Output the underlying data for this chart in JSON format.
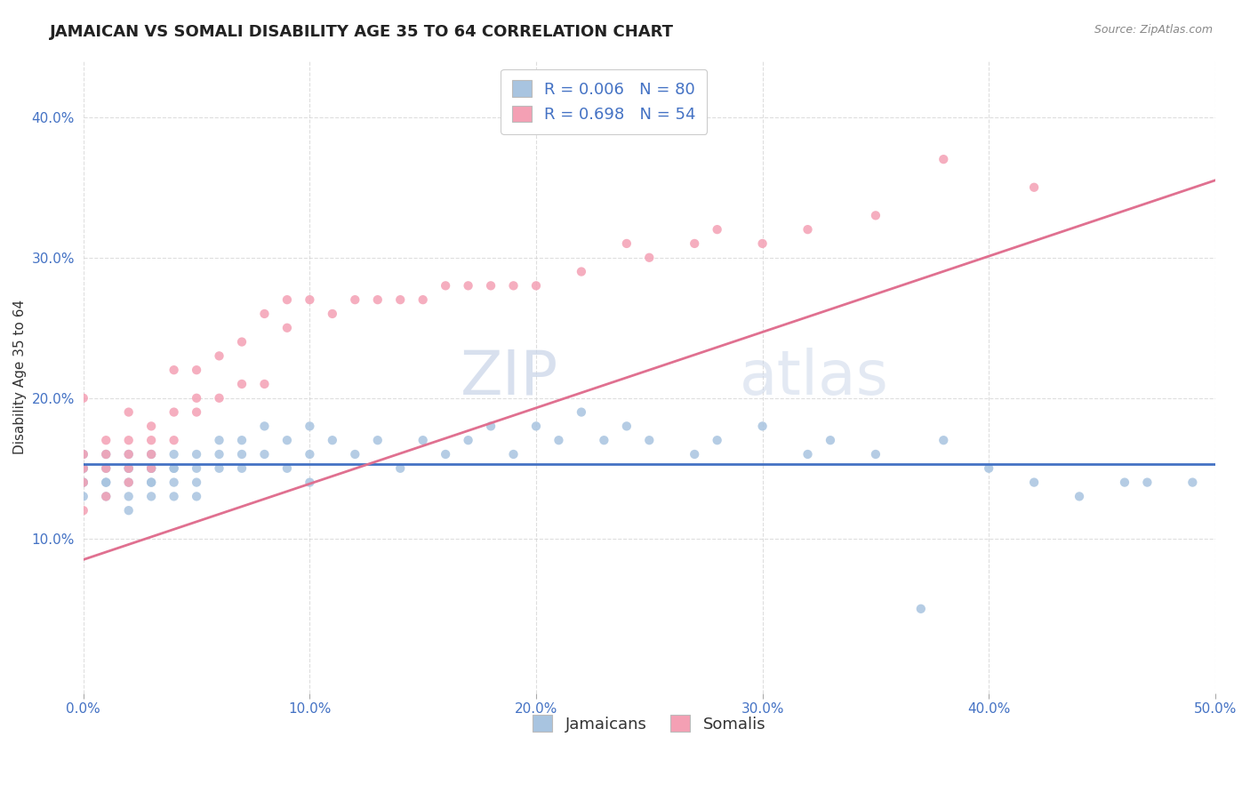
{
  "title": "JAMAICAN VS SOMALI DISABILITY AGE 35 TO 64 CORRELATION CHART",
  "source": "Source: ZipAtlas.com",
  "ylabel": "Disability Age 35 to 64",
  "xlim": [
    0.0,
    0.5
  ],
  "ylim": [
    -0.01,
    0.44
  ],
  "xtick_labels": [
    "0.0%",
    "10.0%",
    "20.0%",
    "30.0%",
    "40.0%",
    "50.0%"
  ],
  "xtick_vals": [
    0.0,
    0.1,
    0.2,
    0.3,
    0.4,
    0.5
  ],
  "ytick_labels": [
    "10.0%",
    "20.0%",
    "30.0%",
    "40.0%"
  ],
  "ytick_vals": [
    0.1,
    0.2,
    0.3,
    0.4
  ],
  "watermark": "ZIPatlas",
  "jamaican_color": "#a8c4e0",
  "somali_color": "#f4a0b4",
  "jamaican_line_color": "#4472c4",
  "somali_line_color": "#e07090",
  "r_value_color": "#4472c4",
  "jamaicans_x": [
    0.0,
    0.0,
    0.0,
    0.0,
    0.0,
    0.0,
    0.01,
    0.01,
    0.01,
    0.01,
    0.01,
    0.02,
    0.02,
    0.02,
    0.02,
    0.02,
    0.02,
    0.03,
    0.03,
    0.03,
    0.03,
    0.03,
    0.03,
    0.04,
    0.04,
    0.04,
    0.04,
    0.04,
    0.05,
    0.05,
    0.05,
    0.05,
    0.06,
    0.06,
    0.06,
    0.07,
    0.07,
    0.07,
    0.08,
    0.08,
    0.09,
    0.09,
    0.1,
    0.1,
    0.1,
    0.11,
    0.12,
    0.13,
    0.14,
    0.15,
    0.16,
    0.17,
    0.18,
    0.19,
    0.2,
    0.21,
    0.22,
    0.23,
    0.24,
    0.25,
    0.27,
    0.28,
    0.3,
    0.32,
    0.33,
    0.35,
    0.37,
    0.38,
    0.4,
    0.42,
    0.44,
    0.46,
    0.47,
    0.49
  ],
  "jamaicans_y": [
    0.14,
    0.15,
    0.16,
    0.13,
    0.14,
    0.15,
    0.13,
    0.14,
    0.15,
    0.16,
    0.14,
    0.13,
    0.14,
    0.15,
    0.12,
    0.16,
    0.15,
    0.14,
    0.13,
    0.15,
    0.14,
    0.16,
    0.15,
    0.14,
    0.15,
    0.13,
    0.16,
    0.15,
    0.15,
    0.14,
    0.16,
    0.13,
    0.17,
    0.15,
    0.16,
    0.16,
    0.17,
    0.15,
    0.18,
    0.16,
    0.17,
    0.15,
    0.16,
    0.18,
    0.14,
    0.17,
    0.16,
    0.17,
    0.15,
    0.17,
    0.16,
    0.17,
    0.18,
    0.16,
    0.18,
    0.17,
    0.19,
    0.17,
    0.18,
    0.17,
    0.16,
    0.17,
    0.18,
    0.16,
    0.17,
    0.16,
    0.05,
    0.17,
    0.15,
    0.14,
    0.13,
    0.14,
    0.14,
    0.14
  ],
  "somalis_x": [
    0.0,
    0.0,
    0.0,
    0.0,
    0.0,
    0.01,
    0.01,
    0.01,
    0.01,
    0.02,
    0.02,
    0.02,
    0.02,
    0.02,
    0.03,
    0.03,
    0.03,
    0.03,
    0.04,
    0.04,
    0.04,
    0.05,
    0.05,
    0.05,
    0.06,
    0.06,
    0.07,
    0.07,
    0.08,
    0.08,
    0.09,
    0.09,
    0.1,
    0.11,
    0.12,
    0.13,
    0.14,
    0.15,
    0.16,
    0.17,
    0.18,
    0.19,
    0.2,
    0.22,
    0.24,
    0.25,
    0.27,
    0.28,
    0.3,
    0.32,
    0.35,
    0.38,
    0.42
  ],
  "somalis_y": [
    0.14,
    0.15,
    0.16,
    0.12,
    0.2,
    0.15,
    0.16,
    0.13,
    0.17,
    0.15,
    0.17,
    0.14,
    0.16,
    0.19,
    0.17,
    0.15,
    0.18,
    0.16,
    0.17,
    0.19,
    0.22,
    0.19,
    0.22,
    0.2,
    0.2,
    0.23,
    0.21,
    0.24,
    0.21,
    0.26,
    0.25,
    0.27,
    0.27,
    0.26,
    0.27,
    0.27,
    0.27,
    0.27,
    0.28,
    0.28,
    0.28,
    0.28,
    0.28,
    0.29,
    0.31,
    0.3,
    0.31,
    0.32,
    0.31,
    0.32,
    0.33,
    0.37,
    0.35
  ],
  "title_fontsize": 13,
  "axis_label_fontsize": 11,
  "tick_fontsize": 11,
  "legend_fontsize": 13,
  "watermark_fontsize": 40,
  "background_color": "#ffffff",
  "grid_color": "#d0d0d0"
}
